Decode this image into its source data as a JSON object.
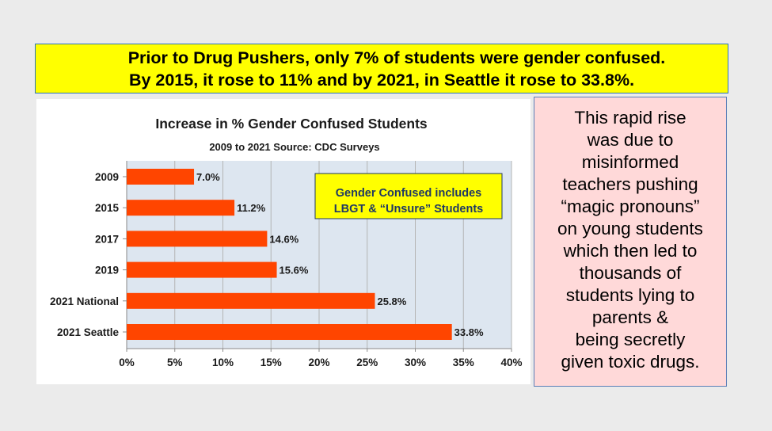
{
  "headline": {
    "line1": "Prior to Drug Pushers, only 7% of students were gender confused.",
    "line2": "By 2015, it rose to 11% and by 2021, in Seattle it rose to 33.8%."
  },
  "side_text": [
    "This rapid rise",
    "was due to",
    "misinformed",
    "teachers pushing",
    "“magic pronouns”",
    "on young students",
    "which then led to",
    "thousands of",
    "students lying to",
    "parents &",
    "being secretly",
    "given toxic drugs."
  ],
  "colors": {
    "bar": "#ff4500",
    "plot_bg": "#dde6f0",
    "headline_bg": "#ffff00",
    "side_bg": "#ffd9d9",
    "note_bg": "#ffff00"
  },
  "chart_data": {
    "type": "bar",
    "orientation": "horizontal",
    "title": "Increase in % Gender Confused Students",
    "subtitle": "2009 to 2021 Source: CDC Surveys",
    "categories": [
      "2009",
      "2015",
      "2017",
      "2019",
      "2021 National",
      "2021 Seattle"
    ],
    "values": [
      7.0,
      11.2,
      14.6,
      15.6,
      25.8,
      33.8
    ],
    "value_labels": [
      "7.0%",
      "11.2%",
      "14.6%",
      "15.6%",
      "25.8%",
      "33.8%"
    ],
    "xticks": [
      0,
      5,
      10,
      15,
      20,
      25,
      30,
      35,
      40
    ],
    "xtick_labels": [
      "0%",
      "5%",
      "10%",
      "15%",
      "20%",
      "25%",
      "30%",
      "35%",
      "40%"
    ],
    "xlim": [
      0,
      40
    ],
    "grid": true,
    "annotation_lines": [
      "Gender Confused includes",
      "LBGT & “Unsure” Students"
    ]
  }
}
